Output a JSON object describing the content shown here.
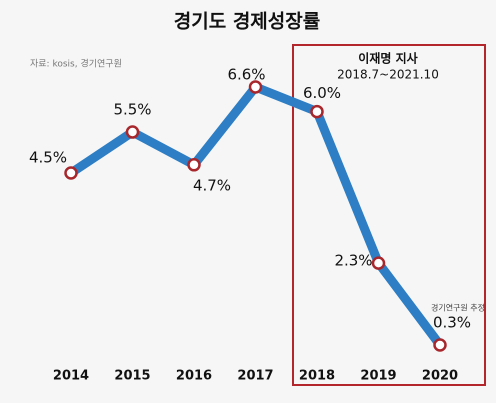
{
  "chart_data": {
    "type": "line",
    "title": "경기도 경제성장률",
    "source": "자료: kosis, 경기연구원",
    "annotation": {
      "title": "이재명 지사",
      "period": "2018.7~2021.10",
      "note": "경기연구원 추정"
    },
    "categories": [
      "2014",
      "2015",
      "2016",
      "2017",
      "2018",
      "2019",
      "2020"
    ],
    "series": [
      {
        "color": "#2d7ec4",
        "values": [
          4.5,
          5.5,
          4.7,
          6.6,
          6.0,
          2.3,
          0.3
        ],
        "value_labels": [
          "4.5%",
          "5.5%",
          "4.7%",
          "6.6%",
          "6.0%",
          "2.3%",
          "0.3%"
        ]
      }
    ]
  }
}
